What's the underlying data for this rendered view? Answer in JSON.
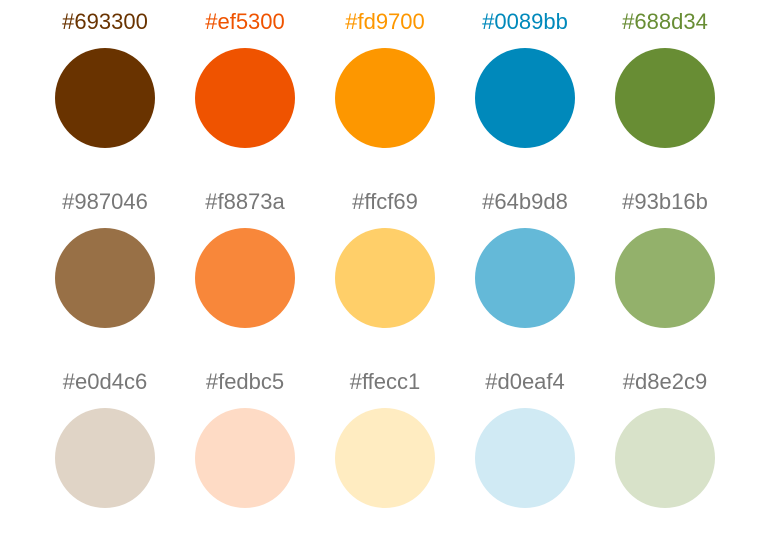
{
  "palette": {
    "rows": [
      [
        {
          "label": "#693300",
          "color": "#693300",
          "label_color": "#693300"
        },
        {
          "label": "#ef5300",
          "color": "#ef5300",
          "label_color": "#ef5300"
        },
        {
          "label": "#fd9700",
          "color": "#fd9700",
          "label_color": "#fd9700"
        },
        {
          "label": "#0089bb",
          "color": "#0089bb",
          "label_color": "#0089bb"
        },
        {
          "label": "#688d34",
          "color": "#688d34",
          "label_color": "#688d34"
        }
      ],
      [
        {
          "label": "#987046",
          "color": "#987046",
          "label_color": "#777777"
        },
        {
          "label": "#f8873a",
          "color": "#f8873a",
          "label_color": "#777777"
        },
        {
          "label": "#ffcf69",
          "color": "#ffcf69",
          "label_color": "#777777"
        },
        {
          "label": "#64b9d8",
          "color": "#64b9d8",
          "label_color": "#777777"
        },
        {
          "label": "#93b16b",
          "color": "#93b16b",
          "label_color": "#777777"
        }
      ],
      [
        {
          "label": "#e0d4c6",
          "color": "#e0d4c6",
          "label_color": "#777777"
        },
        {
          "label": "#fedbc5",
          "color": "#fedbc5",
          "label_color": "#777777"
        },
        {
          "label": "#ffecc1",
          "color": "#ffecc1",
          "label_color": "#777777"
        },
        {
          "label": "#d0eaf4",
          "color": "#d0eaf4",
          "label_color": "#777777"
        },
        {
          "label": "#d8e2c9",
          "color": "#d8e2c9",
          "label_color": "#777777"
        }
      ]
    ]
  }
}
